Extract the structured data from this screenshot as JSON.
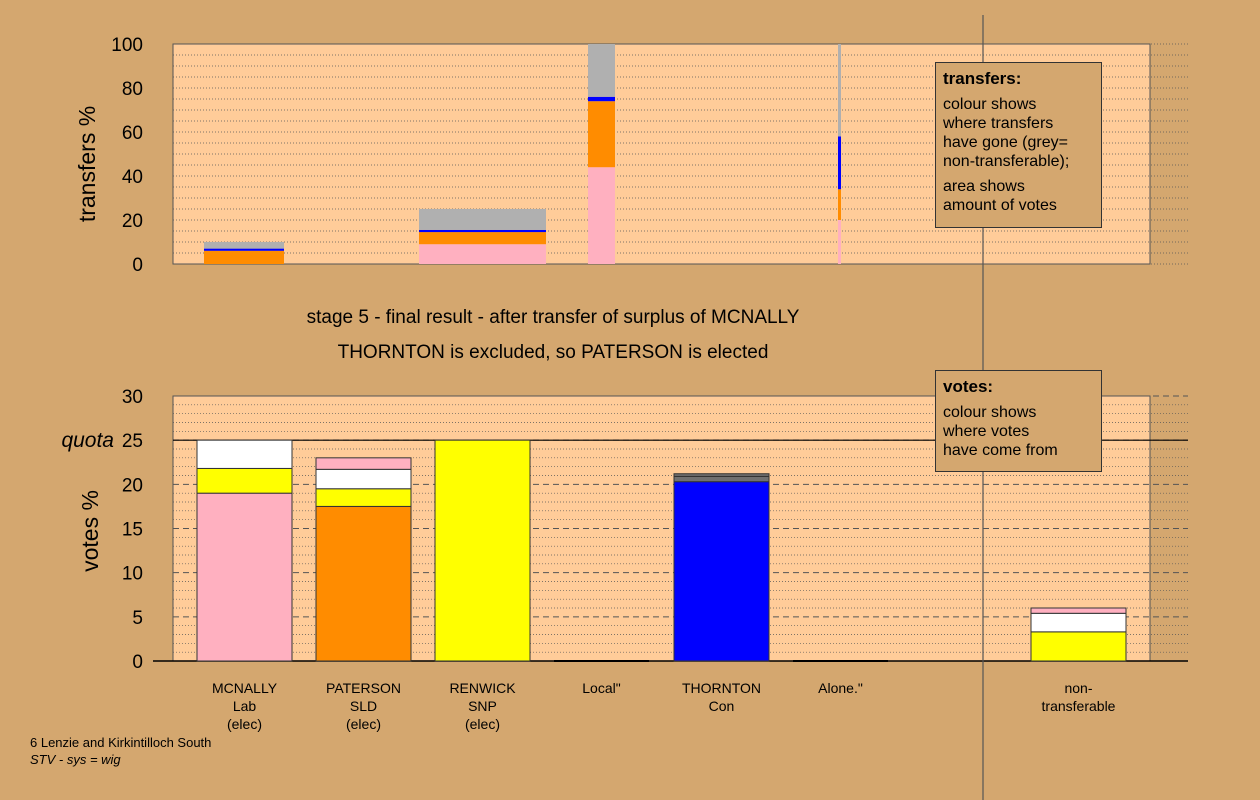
{
  "charts": {
    "transfers": {
      "ylabel": "transfers %",
      "ticks": [
        "0",
        "20",
        "40",
        "60",
        "80",
        "100"
      ],
      "legend": {
        "title": "transfers:",
        "lines": [
          "colour shows",
          "where transfers",
          "have gone (grey=",
          "non-transferable);",
          "area shows",
          "amount of votes"
        ]
      }
    },
    "votes": {
      "ylabel": "votes %",
      "ticks": [
        "0",
        "5",
        "10",
        "15",
        "20",
        "25",
        "30"
      ],
      "quota_label": "quota",
      "legend": {
        "title": "votes:",
        "lines": [
          "colour shows",
          "where votes",
          "have come from"
        ]
      },
      "candidates": [
        {
          "name": "MCNALLY",
          "party": "Lab",
          "status": "(elec)"
        },
        {
          "name": "PATERSON",
          "party": "SLD",
          "status": "(elec)"
        },
        {
          "name": "RENWICK",
          "party": "SNP",
          "status": "(elec)"
        },
        {
          "name": "Local\"",
          "party": "",
          "status": ""
        },
        {
          "name": "THORNTON",
          "party": "Con",
          "status": ""
        },
        {
          "name": "Alone.\"",
          "party": "",
          "status": ""
        },
        {
          "name": "non-",
          "party": "transferable",
          "status": ""
        }
      ]
    }
  },
  "stage_title": "stage 5 - final result - after transfer of surplus of MCNALLY",
  "stage_subtitle": "THORNTON is excluded, so PATERSON is elected",
  "footer": {
    "line1": "6 Lenzie and Kirkintilloch South",
    "line2": "STV - sys = wig"
  },
  "colors": {
    "Lab": "#ffb0c0",
    "SLD": "#ff8c00",
    "SNP": "#ffff00",
    "Con": "#0000ff",
    "nontransferable": "#b0b0b0",
    "white": "#ffffff",
    "darkgrey": "#707070"
  },
  "chart_data": [
    {
      "type": "bar",
      "title": "",
      "ylabel": "transfers %",
      "ylim": [
        0,
        100
      ],
      "stacked": true,
      "bars": [
        {
          "segments": [
            {
              "color": "Lab",
              "value": 0
            },
            {
              "color": "SLD",
              "value": 6
            },
            {
              "color": "Con",
              "value": 1
            },
            {
              "color": "nontransferable",
              "value": 3
            }
          ]
        },
        {
          "segments": [
            {
              "color": "Lab",
              "value": 9
            },
            {
              "color": "SLD",
              "value": 5.5
            },
            {
              "color": "Con",
              "value": 1
            },
            {
              "color": "nontransferable",
              "value": 9.5
            }
          ]
        },
        {
          "segments": [
            {
              "color": "Lab",
              "value": 44
            },
            {
              "color": "SLD",
              "value": 30
            },
            {
              "color": "Con",
              "value": 2
            },
            {
              "color": "nontransferable",
              "value": 24
            }
          ]
        },
        {
          "segments": [
            {
              "color": "Lab",
              "value": 20
            },
            {
              "color": "SLD",
              "value": 14
            },
            {
              "color": "Con",
              "value": 24
            },
            {
              "color": "nontransferable",
              "value": 42
            }
          ]
        }
      ]
    },
    {
      "type": "bar",
      "title": "",
      "ylabel": "votes %",
      "ylim": [
        0,
        30
      ],
      "quota": 25,
      "stacked": true,
      "categories": [
        "MCNALLY",
        "PATERSON",
        "RENWICK",
        "Local\"",
        "THORNTON",
        "Alone.\"",
        "non-transferable"
      ],
      "bars": [
        {
          "segments": [
            {
              "color": "Lab",
              "value": 19
            },
            {
              "color": "SNP",
              "value": 2.8
            },
            {
              "color": "white",
              "value": 3.2
            }
          ]
        },
        {
          "segments": [
            {
              "color": "SLD",
              "value": 17.5
            },
            {
              "color": "SNP",
              "value": 2
            },
            {
              "color": "white",
              "value": 2.2
            },
            {
              "color": "Lab",
              "value": 1.3
            }
          ]
        },
        {
          "segments": [
            {
              "color": "SNP",
              "value": 25
            }
          ]
        },
        {
          "segments": []
        },
        {
          "segments": [
            {
              "color": "Con",
              "value": 20.3
            },
            {
              "color": "darkgrey",
              "value": 0.6
            },
            {
              "color": "darkgrey",
              "value": 0.3
            }
          ]
        },
        {
          "segments": []
        },
        {
          "segments": [
            {
              "color": "SNP",
              "value": 3.3
            },
            {
              "color": "white",
              "value": 2.1
            },
            {
              "color": "Lab",
              "value": 0.6
            }
          ]
        }
      ]
    }
  ]
}
